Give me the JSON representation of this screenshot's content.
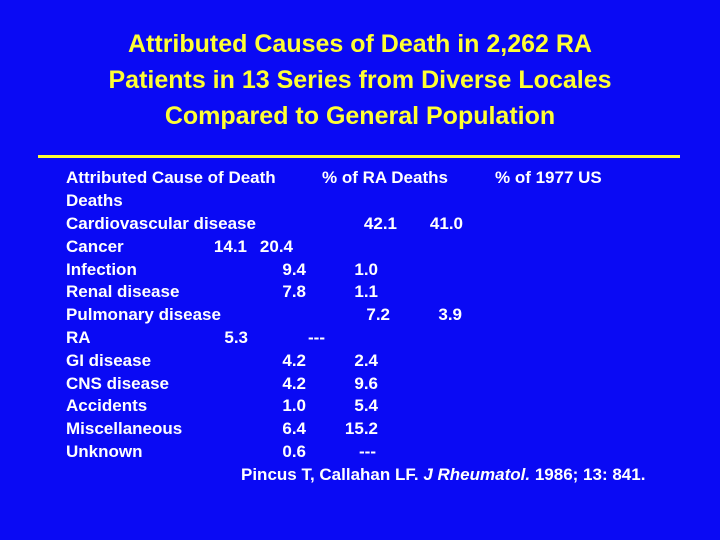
{
  "slide": {
    "title": [
      "Attributed Causes of Death in 2,262 RA",
      "Patients in 13 Series from Diverse Locales",
      "Compared to General Population"
    ],
    "header": [
      "Attributed Cause of Death",
      "% of RA Deaths",
      "% of 1977 US",
      "Deaths"
    ],
    "rows": [
      [
        "Cardiovascular disease",
        "42.1",
        "41.0"
      ],
      [
        "Cancer",
        "14.1",
        "20.4"
      ],
      [
        "Infection",
        "9.4",
        "1.0"
      ],
      [
        "Renal disease",
        "7.8",
        "1.1"
      ],
      [
        "Pulmonary disease",
        "7.2",
        "3.9"
      ],
      [
        "RA",
        "5.3",
        "---"
      ],
      [
        "GI disease",
        "4.2",
        "2.4"
      ],
      [
        "CNS disease",
        "4.2",
        "9.6"
      ],
      [
        "Accidents",
        "1.0",
        "5.4"
      ],
      [
        "Miscellaneous",
        "6.4",
        "15.2"
      ],
      [
        "Unknown",
        "0.6",
        "---"
      ]
    ],
    "citation": {
      "authors": "Pincus T, Callahan LF.",
      "journal": "J Rheumatol.",
      "details": "1986; 13: 841."
    }
  }
}
